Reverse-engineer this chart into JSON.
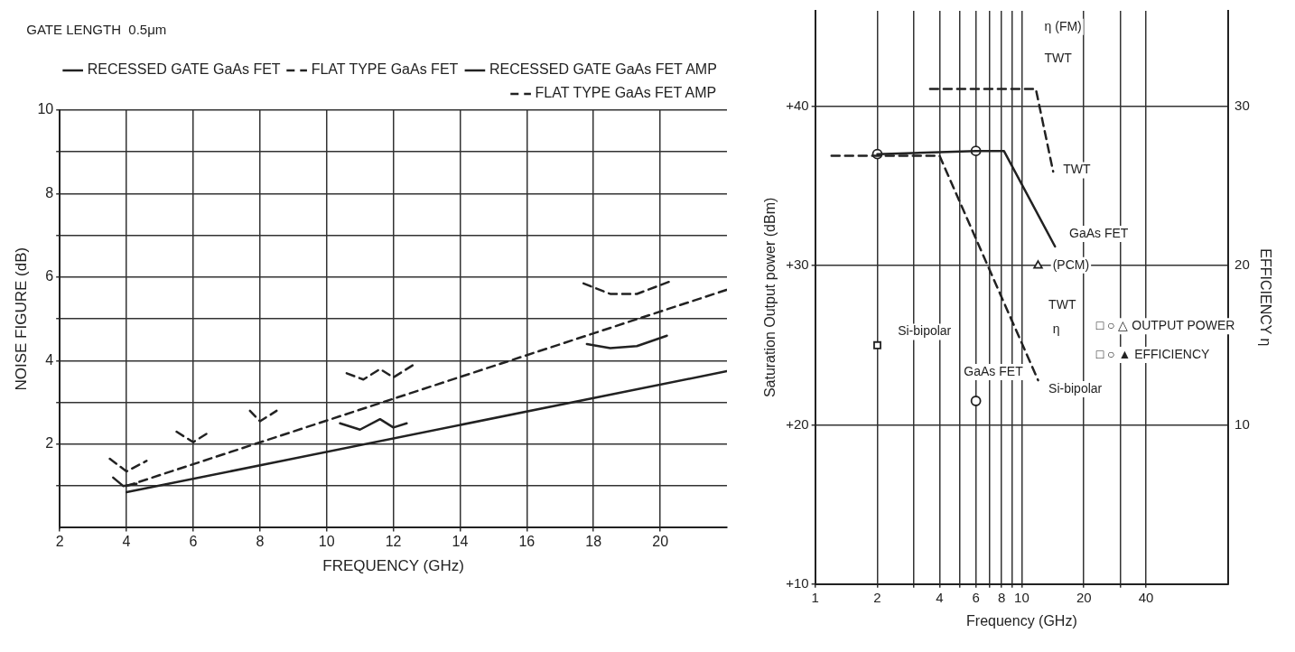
{
  "chart_data": [
    {
      "type": "line",
      "xlabel": "FREQUENCY (GHz)",
      "ylabel": "NOISE FIGURE (dB)",
      "annotations": [
        "GATE LENGTH  0.5μm"
      ],
      "xlim": [
        2,
        22
      ],
      "xticks": [
        2,
        4,
        6,
        8,
        10,
        12,
        14,
        16,
        18,
        20
      ],
      "ylim": [
        0,
        10
      ],
      "yticks": [
        {
          "value": 1,
          "label": null
        },
        2,
        {
          "value": 3,
          "label": null
        },
        4,
        {
          "value": 5,
          "label": null
        },
        6,
        {
          "value": 7,
          "label": null
        },
        8,
        {
          "value": 9,
          "label": null
        },
        10
      ],
      "grid": true,
      "legend": "top right",
      "marker": "none",
      "series": [
        {
          "name": "RECESSED GATE GaAs FET",
          "color": "#222222",
          "line_style": "solid",
          "x": [
            4,
            22
          ],
          "values": [
            0.85,
            3.75
          ]
        },
        {
          "name": "FLAT TYPE GaAs FET",
          "color": "#222222",
          "line_style": "dashed",
          "x": [
            4,
            22
          ],
          "values": [
            1.0,
            5.7
          ]
        },
        {
          "name": "RECESSED GATE GaAs FET AMP",
          "color": "#222222",
          "line_style": "solid",
          "x": [
            3.6,
            3.9,
            4.3
          ],
          "values": [
            1.2,
            1.0,
            1.05
          ]
        },
        {
          "color": "#222222",
          "line_style": "solid",
          "x": [
            10.4,
            11,
            11.6,
            12,
            12.4
          ],
          "values": [
            2.5,
            2.35,
            2.6,
            2.4,
            2.5
          ]
        },
        {
          "color": "#222222",
          "line_style": "solid",
          "x": [
            17.8,
            18.5,
            19.3,
            20.2
          ],
          "values": [
            4.4,
            4.3,
            4.35,
            4.6
          ]
        },
        {
          "name": "FLAT TYPE GaAs FET AMP",
          "color": "#222222",
          "line_style": "dashed",
          "x": [
            3.5,
            4,
            4.6
          ],
          "values": [
            1.65,
            1.35,
            1.6
          ]
        },
        {
          "color": "#222222",
          "line_style": "dashed",
          "x": [
            5.5,
            6,
            6.5
          ],
          "values": [
            2.3,
            2.05,
            2.3
          ]
        },
        {
          "color": "#222222",
          "line_style": "dashed",
          "x": [
            7.7,
            8,
            8.5
          ],
          "values": [
            2.8,
            2.55,
            2.8
          ]
        },
        {
          "color": "#222222",
          "line_style": "dashed",
          "x": [
            10.6,
            11.1,
            11.6,
            12,
            12.6
          ],
          "values": [
            3.7,
            3.55,
            3.8,
            3.6,
            3.9
          ]
        },
        {
          "color": "#222222",
          "line_style": "dashed",
          "x": [
            17.7,
            18.5,
            19.3,
            20.3
          ],
          "values": [
            5.85,
            5.6,
            5.6,
            5.9
          ]
        }
      ]
    },
    {
      "type": "line",
      "xlabel": "Frequency (GHz)",
      "ylabel": "Saturation Output power (dBm)",
      "y2label": "EFFICIENCY η",
      "log": "x",
      "xlim": [
        1,
        100
      ],
      "xticks": [
        1,
        2,
        {
          "value": 3,
          "label": null
        },
        4,
        {
          "value": 5,
          "label": null
        },
        6,
        {
          "value": 7,
          "label": null
        },
        8,
        {
          "value": 9,
          "label": null
        },
        10,
        20,
        {
          "value": 30,
          "label": null
        },
        40
      ],
      "ylim": [
        10,
        46
      ],
      "yticks": [
        {
          "value": 10,
          "label": "+10"
        },
        {
          "value": 20,
          "label": "+20"
        },
        {
          "value": 30,
          "label": "+30"
        },
        {
          "value": 40,
          "label": "+40"
        }
      ],
      "y2lim": [
        0,
        36
      ],
      "y2ticks": [
        10,
        20,
        30
      ],
      "grid": true,
      "legend": false,
      "marker": "none",
      "annotations": [
        "□ ○ △ OUTPUT POWER",
        "□ ○ ▲ EFFICIENCY",
        "η (FM)",
        "TWT",
        "TWT",
        "GaAs FET",
        "(PCM)",
        "TWT",
        "η",
        "Si-bipolar",
        "GaAs FET",
        "Si-bipolar"
      ],
      "series": [
        {
          "color": "#222222",
          "line_style": "solid",
          "x": [
            2,
            6,
            8.2,
            14.5
          ],
          "values": [
            37,
            37.2,
            37.2,
            31.2
          ]
        },
        {
          "color": "#222222",
          "line_style": "dashed",
          "x": [
            1.2,
            4,
            12
          ],
          "values": [
            36.9,
            36.9,
            22.8
          ]
        },
        {
          "color": "#222222",
          "line_style": "dashed",
          "x": [
            3.6,
            11.7,
            14.2
          ],
          "values": [
            41.1,
            41.1,
            35.9
          ]
        },
        {
          "type": "scatter",
          "color": "#222222",
          "marker": "circle",
          "x": [
            2,
            6
          ],
          "values": [
            37,
            37.2
          ]
        },
        {
          "type": "scatter",
          "color": "#222222",
          "marker": "square",
          "axis": "y2",
          "x": [
            2
          ],
          "values": [
            15
          ]
        },
        {
          "type": "scatter",
          "color": "#222222",
          "marker": "circle",
          "axis": "y2",
          "x": [
            6
          ],
          "values": [
            11.5
          ]
        },
        {
          "type": "scatter",
          "color": "#222222",
          "marker": "triangle",
          "axis": "y2",
          "x": [
            12
          ],
          "values": [
            20
          ]
        }
      ]
    }
  ]
}
